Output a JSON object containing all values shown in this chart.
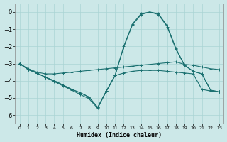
{
  "xlabel": "Humidex (Indice chaleur)",
  "bg_color": "#cce8e8",
  "grid_color": "#aad4d4",
  "line_color": "#1a7070",
  "xlim": [
    -0.5,
    23.5
  ],
  "ylim": [
    -6.5,
    0.5
  ],
  "xticks": [
    0,
    1,
    2,
    3,
    4,
    5,
    6,
    7,
    8,
    9,
    10,
    11,
    12,
    13,
    14,
    15,
    16,
    17,
    18,
    19,
    20,
    21,
    22,
    23
  ],
  "yticks": [
    0,
    -1,
    -2,
    -3,
    -4,
    -5,
    -6
  ],
  "line1_x": [
    0,
    1,
    2,
    3,
    4,
    5,
    6,
    7,
    8,
    9,
    10,
    11,
    12,
    13,
    14,
    15,
    16,
    17,
    18,
    19,
    20,
    21,
    22,
    23
  ],
  "line1_y": [
    -3.0,
    -3.3,
    -3.5,
    -3.6,
    -3.6,
    -3.55,
    -3.5,
    -3.45,
    -3.4,
    -3.35,
    -3.3,
    -3.25,
    -3.2,
    -3.15,
    -3.1,
    -3.05,
    -3.0,
    -2.95,
    -2.9,
    -3.05,
    -3.1,
    -3.2,
    -3.3,
    -3.35
  ],
  "line2_x": [
    0,
    1,
    2,
    3,
    4,
    5,
    6,
    7,
    8,
    9,
    10,
    11,
    12,
    13,
    14,
    15,
    16,
    17,
    18,
    19,
    20,
    21,
    22,
    23
  ],
  "line2_y": [
    -3.0,
    -3.35,
    -3.55,
    -3.8,
    -4.0,
    -4.25,
    -4.5,
    -4.7,
    -4.95,
    -5.55,
    -4.6,
    -3.7,
    -3.55,
    -3.45,
    -3.4,
    -3.4,
    -3.4,
    -3.45,
    -3.5,
    -3.55,
    -3.6,
    -4.5,
    -4.6,
    -4.65
  ],
  "line3_x": [
    0,
    1,
    2,
    3,
    4,
    5,
    6,
    7,
    8,
    9,
    10,
    11,
    12,
    13,
    14,
    15,
    16,
    17,
    18,
    19,
    20,
    21,
    22,
    23
  ],
  "line3_y": [
    -3.0,
    -3.35,
    -3.55,
    -3.8,
    -4.0,
    -4.25,
    -4.5,
    -4.7,
    -4.95,
    -5.55,
    -4.6,
    -3.7,
    -2.0,
    -0.7,
    -0.1,
    0.0,
    -0.1,
    -0.8,
    -2.1,
    -3.1,
    -3.45,
    -3.6,
    -4.55,
    -4.65
  ],
  "line4_x": [
    0,
    1,
    2,
    3,
    4,
    5,
    6,
    7,
    8,
    9,
    10,
    11,
    12,
    13,
    14,
    15,
    16,
    17,
    18,
    19,
    20,
    21,
    22,
    23
  ],
  "line4_y": [
    -3.0,
    -3.35,
    -3.55,
    -3.8,
    -4.05,
    -4.3,
    -4.55,
    -4.8,
    -5.05,
    -5.6,
    -4.6,
    -3.7,
    -2.05,
    -0.75,
    -0.15,
    0.0,
    -0.15,
    -0.85,
    -2.15,
    -3.1,
    -3.45,
    -3.6,
    -4.55,
    -4.65
  ]
}
